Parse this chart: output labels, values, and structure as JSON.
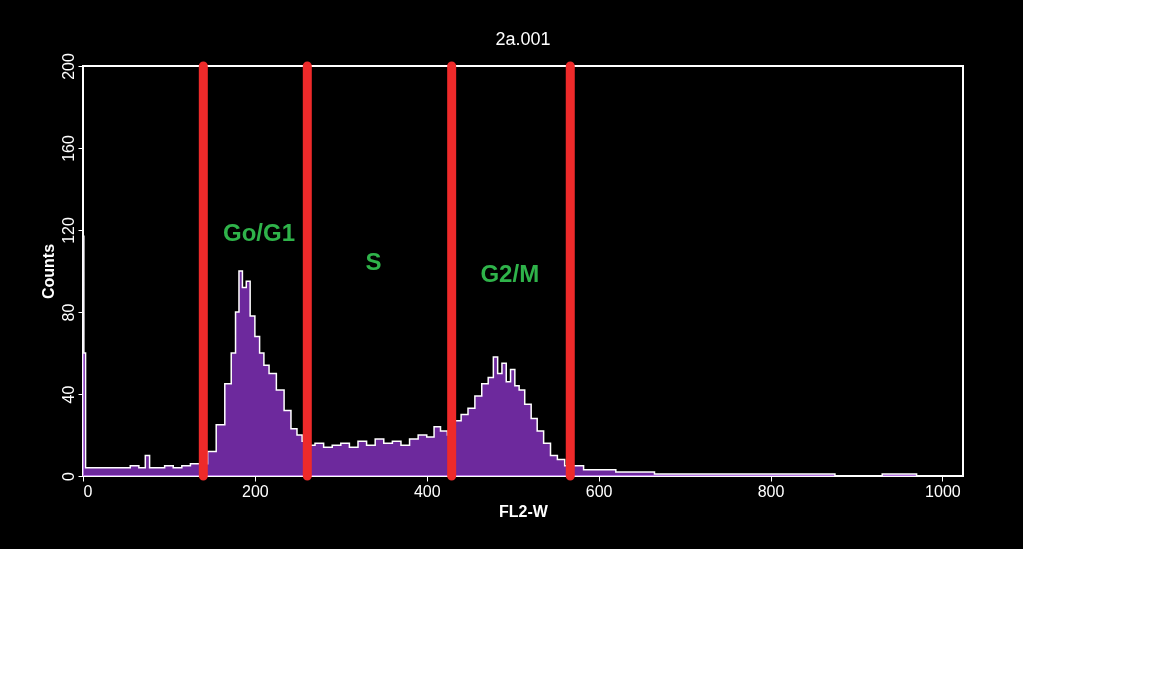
{
  "chart_data": {
    "type": "area",
    "title": "2a.001",
    "xlabel": "FL2-W",
    "ylabel": "Counts",
    "x": [
      0,
      2,
      4,
      10,
      20,
      30,
      40,
      50,
      60,
      70,
      75,
      80,
      90,
      100,
      110,
      120,
      130,
      140,
      150,
      160,
      170,
      175,
      180,
      183,
      188,
      192,
      197,
      203,
      208,
      213,
      220,
      230,
      238,
      246,
      252,
      258,
      265,
      275,
      285,
      295,
      305,
      315,
      325,
      335,
      345,
      355,
      365,
      375,
      385,
      395,
      405,
      412,
      420,
      428,
      436,
      444,
      452,
      460,
      468,
      475,
      480,
      485,
      490,
      495,
      500,
      505,
      510,
      518,
      525,
      532,
      540,
      548,
      556,
      565,
      575,
      590,
      610,
      630,
      650,
      680,
      700,
      750,
      800,
      850,
      900,
      960,
      980,
      1000
    ],
    "series": [
      {
        "color": "#9b3be0",
        "values": [
          117,
          60,
          4,
          4,
          4,
          4,
          4,
          4,
          5,
          4,
          10,
          4,
          4,
          5,
          4,
          5,
          6,
          6,
          12,
          25,
          45,
          60,
          80,
          100,
          92,
          95,
          78,
          68,
          60,
          54,
          50,
          42,
          32,
          23,
          20,
          17,
          15,
          16,
          14,
          15,
          16,
          14,
          17,
          15,
          18,
          16,
          17,
          15,
          18,
          20,
          19,
          24,
          22,
          20,
          27,
          30,
          33,
          39,
          45,
          48,
          58,
          50,
          55,
          46,
          52,
          44,
          42,
          35,
          28,
          22,
          16,
          10,
          8,
          5,
          5,
          3,
          3,
          2,
          2,
          1,
          1,
          1,
          1,
          1,
          0,
          1,
          0,
          0
        ]
      }
    ],
    "xlim": [
      0,
      1024
    ],
    "ylim": [
      0,
      200
    ],
    "xticks": [
      0,
      200,
      400,
      600,
      800,
      1000
    ],
    "yticks": [
      0,
      40,
      80,
      120,
      160,
      200
    ],
    "ref_lines": [
      {
        "axis": "x",
        "value": 140,
        "color": "#ee2a2a"
      },
      {
        "axis": "x",
        "value": 261,
        "color": "#ee2a2a"
      },
      {
        "axis": "x",
        "value": 429,
        "color": "#ee2a2a"
      },
      {
        "axis": "x",
        "value": 567,
        "color": "#ee2a2a"
      }
    ],
    "annotations": [
      "Go/G1",
      "S",
      "G2/M"
    ],
    "grid": false
  }
}
